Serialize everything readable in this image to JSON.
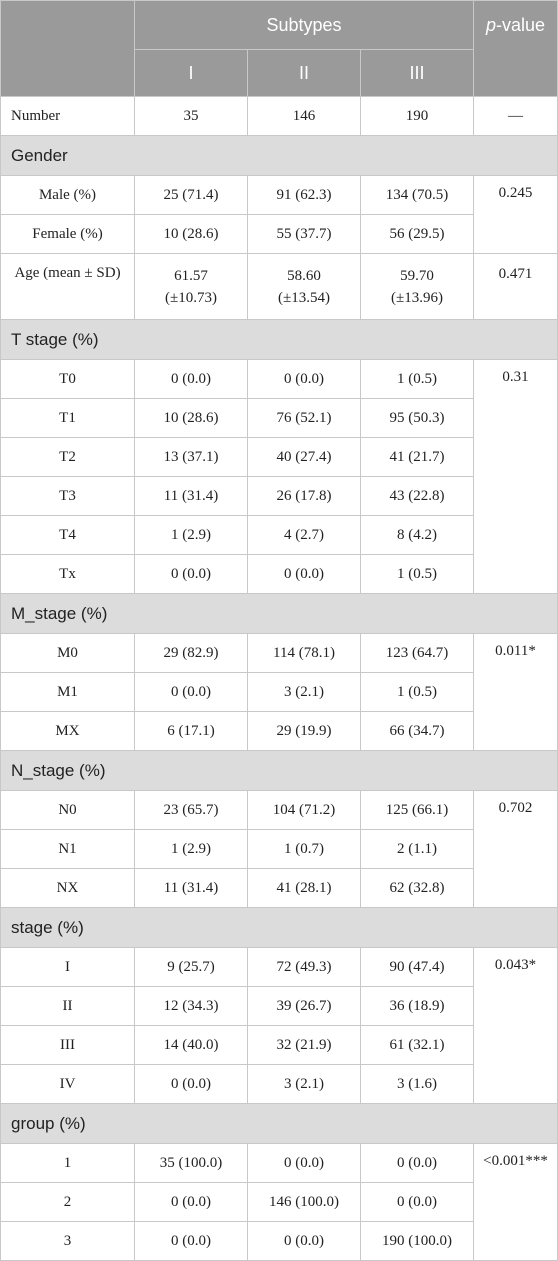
{
  "header": {
    "subtypes_label": "Subtypes",
    "p_label_italic": "p",
    "p_label_rest": "-value",
    "sub_I": "I",
    "sub_II": "II",
    "sub_III": "III"
  },
  "number": {
    "label": "Number",
    "I": "35",
    "II": "146",
    "III": "190",
    "p": "—"
  },
  "gender": {
    "title": "Gender",
    "male": {
      "label": "Male (%)",
      "I": "25 (71.4)",
      "II": "91 (62.3)",
      "III": "134 (70.5)"
    },
    "female": {
      "label": "Female (%)",
      "I": "10 (28.6)",
      "II": "55 (37.7)",
      "III": "56 (29.5)"
    },
    "p": "0.245"
  },
  "age": {
    "label": "Age (mean ± SD)",
    "I_mean": "61.57",
    "I_sd": "(±10.73)",
    "II_mean": "58.60",
    "II_sd": "(±13.54)",
    "III_mean": "59.70",
    "III_sd": "(±13.96)",
    "p": "0.471"
  },
  "t_stage": {
    "title": "T stage (%)",
    "p": "0.31",
    "rows": [
      {
        "label": "T0",
        "I": "0 (0.0)",
        "II": "0 (0.0)",
        "III": "1 (0.5)"
      },
      {
        "label": "T1",
        "I": "10 (28.6)",
        "II": "76 (52.1)",
        "III": "95 (50.3)"
      },
      {
        "label": "T2",
        "I": "13 (37.1)",
        "II": "40 (27.4)",
        "III": "41 (21.7)"
      },
      {
        "label": "T3",
        "I": "11 (31.4)",
        "II": "26 (17.8)",
        "III": "43 (22.8)"
      },
      {
        "label": "T4",
        "I": "1 (2.9)",
        "II": "4 (2.7)",
        "III": "8 (4.2)"
      },
      {
        "label": "Tx",
        "I": "0 (0.0)",
        "II": "0 (0.0)",
        "III": "1 (0.5)"
      }
    ]
  },
  "m_stage": {
    "title": "M_stage (%)",
    "p": "0.011*",
    "rows": [
      {
        "label": "M0",
        "I": "29 (82.9)",
        "II": "114 (78.1)",
        "III": "123 (64.7)"
      },
      {
        "label": "M1",
        "I": "0 (0.0)",
        "II": "3 (2.1)",
        "III": "1 (0.5)"
      },
      {
        "label": "MX",
        "I": "6 (17.1)",
        "II": "29 (19.9)",
        "III": "66 (34.7)"
      }
    ]
  },
  "n_stage": {
    "title": "N_stage (%)",
    "p": "0.702",
    "rows": [
      {
        "label": "N0",
        "I": "23 (65.7)",
        "II": "104 (71.2)",
        "III": "125 (66.1)"
      },
      {
        "label": "N1",
        "I": "1 (2.9)",
        "II": "1 (0.7)",
        "III": "2 (1.1)"
      },
      {
        "label": "NX",
        "I": "11 (31.4)",
        "II": "41 (28.1)",
        "III": "62 (32.8)"
      }
    ]
  },
  "stage": {
    "title": "stage (%)",
    "p": "0.043*",
    "rows": [
      {
        "label": "I",
        "I": "9 (25.7)",
        "II": "72 (49.3)",
        "III": "90 (47.4)"
      },
      {
        "label": "II",
        "I": "12 (34.3)",
        "II": "39 (26.7)",
        "III": "36 (18.9)"
      },
      {
        "label": "III",
        "I": "14 (40.0)",
        "II": "32 (21.9)",
        "III": "61 (32.1)"
      },
      {
        "label": "IV",
        "I": "0 (0.0)",
        "II": "3 (2.1)",
        "III": "3 (1.6)"
      }
    ]
  },
  "group": {
    "title": "group (%)",
    "p": "<0.001***",
    "rows": [
      {
        "label": "1",
        "I": "35 (100.0)",
        "II": "0 (0.0)",
        "III": "0 (0.0)"
      },
      {
        "label": "2",
        "I": "0 (0.0)",
        "II": "146 (100.0)",
        "III": "0 (0.0)"
      },
      {
        "label": "3",
        "I": "0 (0.0)",
        "II": "0 (0.0)",
        "III": "190 (100.0)"
      }
    ]
  }
}
